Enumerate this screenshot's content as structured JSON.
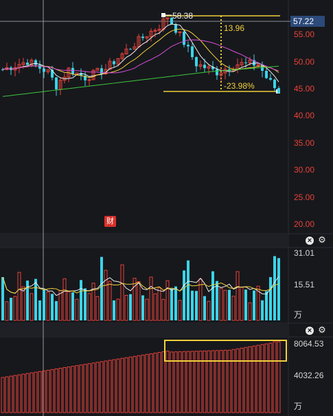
{
  "price_axis": {
    "current_price": "57.22",
    "ticks": [
      "55.00",
      "50.00",
      "45.00",
      "40.00",
      "35.00",
      "30.00",
      "25.00",
      "20.00"
    ]
  },
  "annotations": {
    "high_label": "58.38",
    "range_label": "13.96",
    "change_label": "-23.98%"
  },
  "badge": {
    "label": "财"
  },
  "volume_panel": {
    "ticks": [
      "31.01",
      "15.51"
    ],
    "unit": "万"
  },
  "indicator_panel": {
    "ticks": [
      "8064.53",
      "4032.26"
    ],
    "unit": "万"
  },
  "controls": {
    "close_icon": "×",
    "gear_icon": "⚙"
  },
  "colors": {
    "background": "#17181c",
    "up": "#e8423a",
    "down": "#3bd4e8",
    "ma_white": "#f0f0f0",
    "ma_yellow": "#f2d03b",
    "ma_magenta": "#d94fd9",
    "ma_green": "#3cc83c",
    "highlight": "#f2d03b"
  },
  "chart_data": {
    "type": "candlestick",
    "price_ylim": [
      19,
      59
    ],
    "high_price": 58.38,
    "low_price": 44.2,
    "range": 13.96,
    "change_pct": -23.98,
    "indicator_max": 8064.53,
    "indicator_mid": 4032.26,
    "volume_max": 31.01,
    "volume_mid": 15.51
  }
}
